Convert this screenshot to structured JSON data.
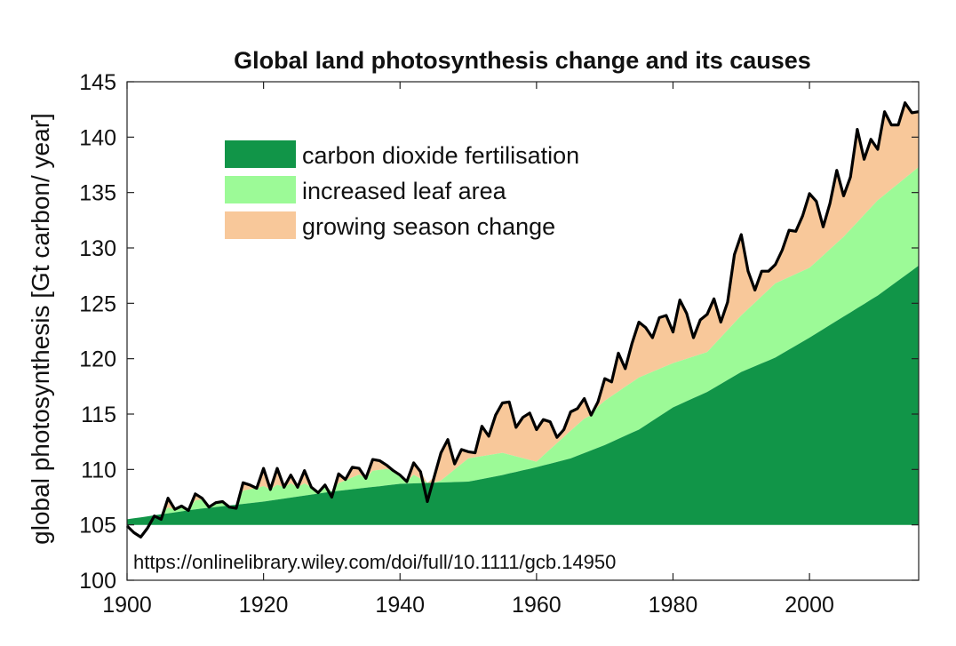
{
  "chart_data": {
    "type": "area",
    "title": "Global land photosynthesis change and its causes",
    "xlabel": "",
    "ylabel": "global photosynthesis [Gt carbon/ year]",
    "xlim": [
      1900,
      2016
    ],
    "ylim": [
      100,
      145
    ],
    "baseline": 105,
    "x_ticks": [
      1900,
      1920,
      1940,
      1960,
      1980,
      2000
    ],
    "y_ticks": [
      100,
      105,
      110,
      115,
      120,
      125,
      130,
      135,
      140,
      145
    ],
    "grid": false,
    "legend_position": "top-left",
    "annotation": "https://onlinelibrary.wiley.com/doi/full/10.1111/gcb.14950",
    "colors": {
      "co2": "#119548",
      "leaf": "#9cfa97",
      "season": "#f8c89a",
      "total_line": "#000000"
    },
    "legend": [
      {
        "key": "co2",
        "label": "carbon dioxide fertilisation"
      },
      {
        "key": "leaf",
        "label": "increased leaf area"
      },
      {
        "key": "season",
        "label": "growing season change"
      }
    ],
    "total_series_name": "",
    "co2_x": [
      1900,
      1910,
      1920,
      1930,
      1940,
      1950,
      1955,
      1960,
      1965,
      1970,
      1975,
      1980,
      1985,
      1990,
      1995,
      2000,
      2005,
      2010,
      2016
    ],
    "co2_values": [
      105.5,
      106.4,
      107.1,
      108.0,
      108.7,
      108.9,
      109.5,
      110.2,
      111.0,
      112.2,
      113.6,
      115.6,
      117.0,
      118.8,
      120.1,
      121.9,
      123.8,
      125.7,
      128.4
    ],
    "total_x": [
      1900,
      1901,
      1902,
      1903,
      1904,
      1905,
      1906,
      1907,
      1908,
      1909,
      1910,
      1911,
      1912,
      1913,
      1914,
      1915,
      1916,
      1917,
      1918,
      1919,
      1920,
      1921,
      1922,
      1923,
      1924,
      1925,
      1926,
      1927,
      1928,
      1929,
      1930,
      1931,
      1932,
      1933,
      1934,
      1935,
      1936,
      1937,
      1938,
      1939,
      1940,
      1941,
      1942,
      1943,
      1944,
      1945,
      1946,
      1947,
      1948,
      1949,
      1950,
      1951,
      1952,
      1953,
      1954,
      1955,
      1956,
      1957,
      1958,
      1959,
      1960,
      1961,
      1962,
      1963,
      1964,
      1965,
      1966,
      1967,
      1968,
      1969,
      1970,
      1971,
      1972,
      1973,
      1974,
      1975,
      1976,
      1977,
      1978,
      1979,
      1980,
      1981,
      1982,
      1983,
      1984,
      1985,
      1986,
      1987,
      1988,
      1989,
      1990,
      1991,
      1992,
      1993,
      1994,
      1995,
      1996,
      1997,
      1998,
      1999,
      2000,
      2001,
      2002,
      2003,
      2004,
      2005,
      2006,
      2007,
      2008,
      2009,
      2010,
      2011,
      2012,
      2013,
      2014,
      2015,
      2016
    ],
    "total_values": [
      104.9,
      104.3,
      103.9,
      104.7,
      105.8,
      105.5,
      107.4,
      106.4,
      106.7,
      106.3,
      107.8,
      107.4,
      106.6,
      107.0,
      107.1,
      106.6,
      106.5,
      108.8,
      108.6,
      108.3,
      110.1,
      108.2,
      110.1,
      108.4,
      109.5,
      108.4,
      109.9,
      108.4,
      107.9,
      108.6,
      107.5,
      109.6,
      109.1,
      110.2,
      110.1,
      109.2,
      110.9,
      110.8,
      110.4,
      109.9,
      109.5,
      108.9,
      110.6,
      109.8,
      107.1,
      109.3,
      111.5,
      112.7,
      110.5,
      111.8,
      111.6,
      111.5,
      113.9,
      113.0,
      114.9,
      116.0,
      116.1,
      113.8,
      114.7,
      115.1,
      113.6,
      114.5,
      114.3,
      112.9,
      113.6,
      115.2,
      115.5,
      116.4,
      114.9,
      116.1,
      118.2,
      117.9,
      120.5,
      119.1,
      121.4,
      123.3,
      122.8,
      121.9,
      123.7,
      123.9,
      122.4,
      125.3,
      124.1,
      121.9,
      123.5,
      124.0,
      125.4,
      123.3,
      125.1,
      129.4,
      131.2,
      127.9,
      126.2,
      127.9,
      127.9,
      128.5,
      129.8,
      131.6,
      131.5,
      132.9,
      134.9,
      134.2,
      131.9,
      134.0,
      137.0,
      134.7,
      136.4,
      140.7,
      138.0,
      139.8,
      138.9,
      142.3,
      141.1,
      141.1,
      143.1,
      142.2,
      142.3
    ],
    "leaf_top_x": [
      1900,
      1905,
      1910,
      1915,
      1920,
      1925,
      1930,
      1935,
      1940,
      1945,
      1950,
      1955,
      1960,
      1965,
      1970,
      1975,
      1980,
      1985,
      1990,
      1995,
      2000,
      2005,
      2010,
      2016
    ],
    "leaf_top_values": [
      105.5,
      106.4,
      107.2,
      107.8,
      108.5,
      108.8,
      108.5,
      109.8,
      110.2,
      108.5,
      111.0,
      111.5,
      110.7,
      113.5,
      116.2,
      118.3,
      119.6,
      120.6,
      123.9,
      126.8,
      128.2,
      131.0,
      134.3,
      137.3
    ]
  }
}
